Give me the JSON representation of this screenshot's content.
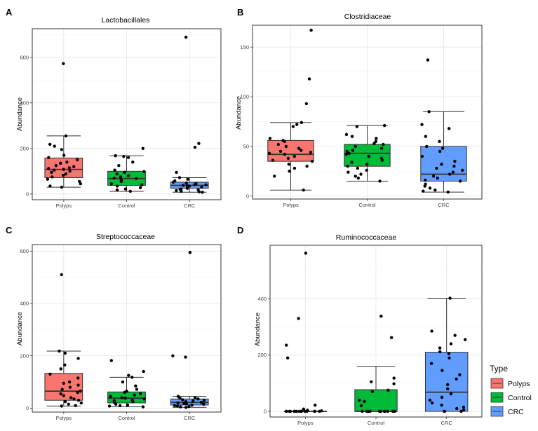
{
  "colors": {
    "Polyps": "#F8766D",
    "Control": "#00BA38",
    "CRC": "#619CFF"
  },
  "legend": {
    "title": "Type",
    "items": [
      {
        "label": "Polyps",
        "key": "Polyps"
      },
      {
        "label": "Control",
        "key": "Control"
      },
      {
        "label": "CRC",
        "key": "CRC"
      }
    ]
  },
  "chart_data": [
    {
      "letter": "A",
      "type": "box",
      "title": "Lactobacillales",
      "ylabel": "Abundance",
      "ylim": [
        -25,
        725
      ],
      "yticks": [
        0,
        200,
        400,
        600
      ],
      "categories": [
        "Polyps",
        "Control",
        "CRC"
      ],
      "boxes": [
        {
          "q1": 72,
          "median": 108,
          "q3": 158,
          "low": 30,
          "high": 255,
          "points": [
            572,
            255,
            218,
            210,
            195,
            170,
            160,
            150,
            140,
            135,
            125,
            120,
            115,
            112,
            108,
            105,
            100,
            95,
            88,
            82,
            75,
            65,
            55,
            45,
            35,
            30
          ]
        },
        {
          "q1": 38,
          "median": 68,
          "q3": 100,
          "low": 12,
          "high": 168,
          "points": [
            200,
            168,
            165,
            160,
            140,
            125,
            105,
            98,
            95,
            88,
            80,
            75,
            70,
            68,
            62,
            55,
            45,
            40,
            35,
            28,
            22,
            18,
            12
          ]
        },
        {
          "q1": 25,
          "median": 38,
          "q3": 52,
          "low": 8,
          "high": 72,
          "points": [
            688,
            222,
            205,
            95,
            72,
            65,
            58,
            52,
            48,
            45,
            42,
            40,
            38,
            36,
            35,
            32,
            30,
            28,
            25,
            22,
            20,
            18,
            15,
            12,
            10,
            8
          ]
        }
      ]
    },
    {
      "letter": "B",
      "type": "box",
      "title": "Clostridiaceae",
      "ylabel": "Abundance",
      "ylim": [
        -3,
        172
      ],
      "yticks": [
        0,
        50,
        100,
        150
      ],
      "categories": [
        "Polyps",
        "Control",
        "CRC"
      ],
      "boxes": [
        {
          "q1": 35,
          "median": 42,
          "q3": 56,
          "low": 6,
          "high": 74,
          "points": [
            167,
            118,
            93,
            74,
            72,
            70,
            58,
            56,
            55,
            52,
            50,
            48,
            46,
            45,
            44,
            43,
            42,
            40,
            38,
            36,
            35,
            32,
            30,
            28,
            25,
            20,
            6
          ]
        },
        {
          "q1": 30,
          "median": 43,
          "q3": 52,
          "low": 15,
          "high": 71,
          "points": [
            71,
            70,
            62,
            60,
            58,
            55,
            53,
            52,
            50,
            48,
            46,
            45,
            43,
            42,
            40,
            38,
            36,
            34,
            32,
            30,
            28,
            26,
            24,
            22,
            20,
            18,
            15
          ]
        },
        {
          "q1": 15,
          "median": 22,
          "q3": 50,
          "low": 4,
          "high": 85,
          "points": [
            137,
            85,
            72,
            68,
            60,
            55,
            50,
            48,
            45,
            40,
            35,
            32,
            30,
            28,
            26,
            24,
            22,
            20,
            18,
            16,
            15,
            12,
            10,
            8,
            6,
            5,
            4
          ]
        }
      ]
    },
    {
      "letter": "C",
      "type": "box",
      "title": "Streptococcaceae",
      "ylabel": "Abundance",
      "ylim": [
        -15,
        625
      ],
      "yticks": [
        0,
        200,
        400,
        600
      ],
      "categories": [
        "Polyps",
        "Control",
        "CRC"
      ],
      "boxes": [
        {
          "q1": 30,
          "median": 65,
          "q3": 133,
          "low": 8,
          "high": 218,
          "points": [
            510,
            218,
            210,
            190,
            165,
            150,
            130,
            115,
            100,
            95,
            88,
            80,
            72,
            65,
            60,
            55,
            48,
            40,
            35,
            30,
            25,
            20,
            15,
            10,
            8
          ]
        },
        {
          "q1": 20,
          "median": 38,
          "q3": 62,
          "low": 5,
          "high": 118,
          "points": [
            182,
            140,
            125,
            118,
            100,
            85,
            72,
            65,
            60,
            55,
            50,
            45,
            40,
            38,
            35,
            30,
            28,
            25,
            20,
            15,
            12,
            10,
            8,
            5
          ]
        },
        {
          "q1": 12,
          "median": 22,
          "q3": 35,
          "low": 3,
          "high": 45,
          "points": [
            595,
            200,
            195,
            45,
            40,
            38,
            35,
            32,
            30,
            28,
            25,
            22,
            20,
            18,
            16,
            15,
            12,
            10,
            8,
            6,
            5,
            3
          ]
        }
      ]
    },
    {
      "letter": "D",
      "type": "box",
      "title": "Ruminococcaceae",
      "ylabel": "Abundance",
      "ylim": [
        -20,
        590
      ],
      "yticks": [
        0,
        200,
        400
      ],
      "categories": [
        "Polyps",
        "Control",
        "CRC"
      ],
      "boxes": [
        {
          "q1": 0,
          "median": 0,
          "q3": 0,
          "low": 0,
          "high": 0,
          "points": [
            562,
            330,
            235,
            190,
            22,
            8,
            4,
            2,
            0,
            0,
            0,
            0,
            0,
            0,
            0,
            0,
            0,
            0,
            0,
            0,
            0,
            0,
            0,
            0
          ]
        },
        {
          "q1": 0,
          "median": 0,
          "q3": 77,
          "low": 0,
          "high": 160,
          "points": [
            338,
            262,
            118,
            105,
            98,
            75,
            70,
            40,
            35,
            20,
            0,
            0,
            0,
            0,
            0,
            0,
            0,
            0,
            0,
            0,
            0,
            0
          ]
        },
        {
          "q1": 0,
          "median": 68,
          "q3": 210,
          "low": 0,
          "high": 402,
          "points": [
            402,
            285,
            270,
            255,
            240,
            225,
            212,
            205,
            190,
            170,
            145,
            130,
            115,
            95,
            80,
            62,
            50,
            40,
            30,
            22,
            15,
            10,
            5,
            0,
            0,
            0
          ]
        }
      ]
    }
  ]
}
